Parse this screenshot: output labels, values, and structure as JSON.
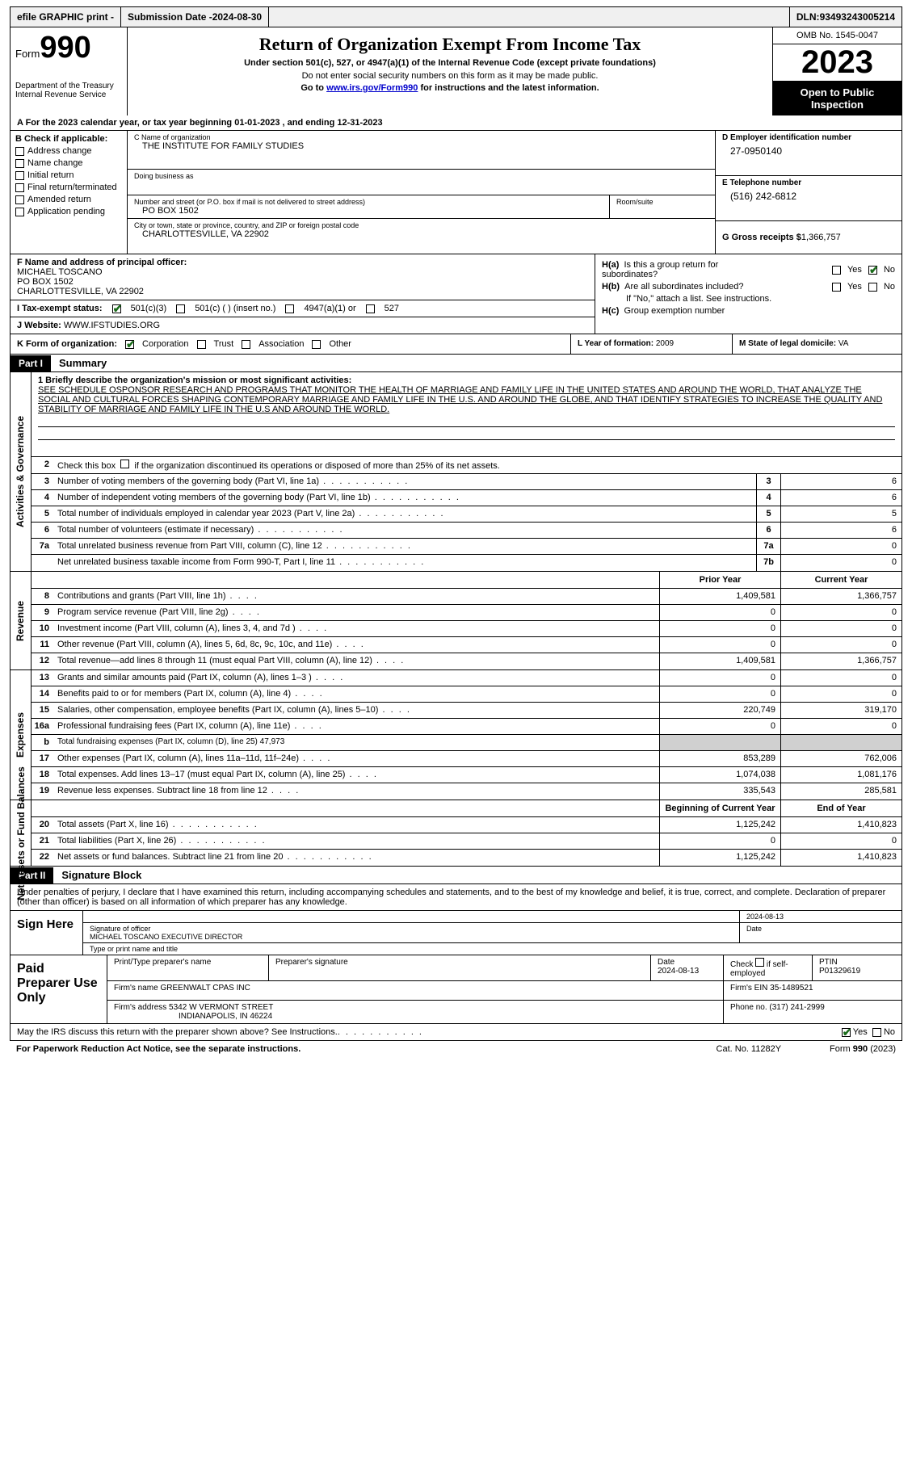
{
  "topbar": {
    "efile": "efile GRAPHIC print -",
    "submission_label": "Submission Date - ",
    "submission_date": "2024-08-30",
    "dln_label": "DLN: ",
    "dln": "93493243005214"
  },
  "header": {
    "form_label": "Form",
    "form_number": "990",
    "dept": "Department of the Treasury Internal Revenue Service",
    "title": "Return of Organization Exempt From Income Tax",
    "subtitle": "Under section 501(c), 527, or 4947(a)(1) of the Internal Revenue Code (except private foundations)",
    "note1": "Do not enter social security numbers on this form as it may be made public.",
    "note2_prefix": "Go to ",
    "note2_link": "www.irs.gov/Form990",
    "note2_suffix": " for instructions and the latest information.",
    "omb": "OMB No. 1545-0047",
    "year": "2023",
    "open_public": "Open to Public Inspection"
  },
  "row_a": {
    "prefix": "A For the 2023 calendar year, or tax year beginning ",
    "begin": "01-01-2023",
    "mid": "  , and ending ",
    "end": "12-31-2023"
  },
  "section_b": {
    "label": "B Check if applicable:",
    "items": [
      "Address change",
      "Name change",
      "Initial return",
      "Final return/terminated",
      "Amended return",
      "Application pending"
    ]
  },
  "section_c": {
    "name_label": "C Name of organization",
    "name": "THE INSTITUTE FOR FAMILY STUDIES",
    "dba_label": "Doing business as",
    "dba": "",
    "street_label": "Number and street (or P.O. box if mail is not delivered to street address)",
    "street": "PO BOX 1502",
    "room_label": "Room/suite",
    "room": "",
    "city_label": "City or town, state or province, country, and ZIP or foreign postal code",
    "city": "CHARLOTTESVILLE, VA  22902"
  },
  "section_d": {
    "ein_label": "D Employer identification number",
    "ein": "27-0950140",
    "phone_label": "E Telephone number",
    "phone": "(516) 242-6812",
    "gross_label": "G Gross receipts $ ",
    "gross": "1,366,757"
  },
  "section_f": {
    "label": "F Name and address of principal officer:",
    "name": "MICHAEL TOSCANO",
    "addr1": "PO BOX 1502",
    "addr2": "CHARLOTTESVILLE, VA  22902"
  },
  "section_h": {
    "ha_label": "H(a)  Is this a group return for subordinates?",
    "hb_label": "H(b)  Are all subordinates included?",
    "hb_note": "If \"No,\" attach a list. See instructions.",
    "hc_label": "H(c)  Group exemption number ",
    "yes": "Yes",
    "no": "No"
  },
  "row_i": {
    "label": "I   Tax-exempt status:",
    "opt1": "501(c)(3)",
    "opt2": "501(c) (   ) (insert no.)",
    "opt3": "4947(a)(1) or",
    "opt4": "527"
  },
  "row_j": {
    "label": "J   Website: ",
    "site": "WWW.IFSTUDIES.ORG"
  },
  "row_k": {
    "label": "K Form of organization:",
    "opts": [
      "Corporation",
      "Trust",
      "Association",
      "Other"
    ]
  },
  "row_l": {
    "label": "L Year of formation: ",
    "val": "2009"
  },
  "row_m": {
    "label": "M State of legal domicile: ",
    "val": "VA"
  },
  "part1": {
    "label": "Part I",
    "title": "Summary"
  },
  "mission": {
    "label": "1   Briefly describe the organization's mission or most significant activities:",
    "text": "SEE SCHEDULE OSPONSOR RESEARCH AND PROGRAMS THAT MONITOR THE HEALTH OF MARRIAGE AND FAMILY LIFE IN THE UNITED STATES AND AROUND THE WORLD, THAT ANALYZE THE SOCIAL AND CULTURAL FORCES SHAPING CONTEMPORARY MARRIAGE AND FAMILY LIFE IN THE U.S. AND AROUND THE GLOBE, AND THAT IDENTIFY STRATEGIES TO INCREASE THE QUALITY AND STABILITY OF MARRIAGE AND FAMILY LIFE IN THE U.S AND AROUND THE WORLD."
  },
  "governance": {
    "side": "Activities & Governance",
    "row2": "Check this box       if the organization discontinued its operations or disposed of more than 25% of its net assets.",
    "rows": [
      {
        "n": "3",
        "desc": "Number of voting members of the governing body (Part VI, line 1a)",
        "box": "3",
        "v": "6"
      },
      {
        "n": "4",
        "desc": "Number of independent voting members of the governing body (Part VI, line 1b)",
        "box": "4",
        "v": "6"
      },
      {
        "n": "5",
        "desc": "Total number of individuals employed in calendar year 2023 (Part V, line 2a)",
        "box": "5",
        "v": "5"
      },
      {
        "n": "6",
        "desc": "Total number of volunteers (estimate if necessary)",
        "box": "6",
        "v": "6"
      },
      {
        "n": "7a",
        "desc": "Total unrelated business revenue from Part VIII, column (C), line 12",
        "box": "7a",
        "v": "0"
      },
      {
        "n": "",
        "desc": "Net unrelated business taxable income from Form 990-T, Part I, line 11",
        "box": "7b",
        "v": "0"
      }
    ]
  },
  "revenue": {
    "side": "Revenue",
    "header": {
      "prior": "Prior Year",
      "current": "Current Year"
    },
    "rows": [
      {
        "n": "8",
        "desc": "Contributions and grants (Part VIII, line 1h)",
        "prior": "1,409,581",
        "cur": "1,366,757"
      },
      {
        "n": "9",
        "desc": "Program service revenue (Part VIII, line 2g)",
        "prior": "0",
        "cur": "0"
      },
      {
        "n": "10",
        "desc": "Investment income (Part VIII, column (A), lines 3, 4, and 7d )",
        "prior": "0",
        "cur": "0"
      },
      {
        "n": "11",
        "desc": "Other revenue (Part VIII, column (A), lines 5, 6d, 8c, 9c, 10c, and 11e)",
        "prior": "0",
        "cur": "0"
      },
      {
        "n": "12",
        "desc": "Total revenue—add lines 8 through 11 (must equal Part VIII, column (A), line 12)",
        "prior": "1,409,581",
        "cur": "1,366,757"
      }
    ]
  },
  "expenses": {
    "side": "Expenses",
    "rows": [
      {
        "n": "13",
        "desc": "Grants and similar amounts paid (Part IX, column (A), lines 1–3 )",
        "prior": "0",
        "cur": "0"
      },
      {
        "n": "14",
        "desc": "Benefits paid to or for members (Part IX, column (A), line 4)",
        "prior": "0",
        "cur": "0"
      },
      {
        "n": "15",
        "desc": "Salaries, other compensation, employee benefits (Part IX, column (A), lines 5–10)",
        "prior": "220,749",
        "cur": "319,170"
      },
      {
        "n": "16a",
        "desc": "Professional fundraising fees (Part IX, column (A), line 11e)",
        "prior": "0",
        "cur": "0"
      },
      {
        "n": "b",
        "desc": "Total fundraising expenses (Part IX, column (D), line 25) 47,973",
        "prior": "",
        "cur": "",
        "shade": true,
        "small": true
      },
      {
        "n": "17",
        "desc": "Other expenses (Part IX, column (A), lines 11a–11d, 11f–24e)",
        "prior": "853,289",
        "cur": "762,006"
      },
      {
        "n": "18",
        "desc": "Total expenses. Add lines 13–17 (must equal Part IX, column (A), line 25)",
        "prior": "1,074,038",
        "cur": "1,081,176"
      },
      {
        "n": "19",
        "desc": "Revenue less expenses. Subtract line 18 from line 12",
        "prior": "335,543",
        "cur": "285,581"
      }
    ]
  },
  "netassets": {
    "side": "Net Assets or Fund Balances",
    "header": {
      "prior": "Beginning of Current Year",
      "current": "End of Year"
    },
    "rows": [
      {
        "n": "20",
        "desc": "Total assets (Part X, line 16)",
        "prior": "1,125,242",
        "cur": "1,410,823"
      },
      {
        "n": "21",
        "desc": "Total liabilities (Part X, line 26)",
        "prior": "0",
        "cur": "0"
      },
      {
        "n": "22",
        "desc": "Net assets or fund balances. Subtract line 21 from line 20",
        "prior": "1,125,242",
        "cur": "1,410,823"
      }
    ]
  },
  "part2": {
    "label": "Part II",
    "title": "Signature Block"
  },
  "sig": {
    "decl": "Under penalties of perjury, I declare that I have examined this return, including accompanying schedules and statements, and to the best of my knowledge and belief, it is true, correct, and complete. Declaration of preparer (other than officer) is based on all information of which preparer has any knowledge.",
    "sign_here": "Sign Here",
    "sig_label": "Signature of officer",
    "officer": "MICHAEL TOSCANO  EXECUTIVE DIRECTOR",
    "type_label": "Type or print name and title",
    "date_label": "Date",
    "date": "2024-08-13"
  },
  "prep": {
    "label": "Paid Preparer Use Only",
    "h1": "Print/Type preparer's name",
    "h2": "Preparer's signature",
    "h3_label": "Date",
    "h3": "2024-08-13",
    "h4_label": "Check        if self-employed",
    "h5_label": "PTIN",
    "h5": "P01329619",
    "firm_name_label": "Firm's name     ",
    "firm_name": "GREENWALT CPAS INC",
    "firm_ein_label": "Firm's EIN  ",
    "firm_ein": "35-1489521",
    "firm_addr_label": "Firm's address ",
    "firm_addr1": "5342 W VERMONT STREET",
    "firm_addr2": "INDIANAPOLIS, IN  46224",
    "phone_label": "Phone no. ",
    "phone": "(317) 241-2999"
  },
  "footer": {
    "discuss": "May the IRS discuss this return with the preparer shown above? See Instructions.",
    "yes": "Yes",
    "no": "No",
    "paperwork": "For Paperwork Reduction Act Notice, see the separate instructions.",
    "cat": "Cat. No. 11282Y",
    "form": "Form 990 (2023)"
  },
  "colors": {
    "check_green": "#1a6b1a",
    "link_blue": "#0000cc"
  }
}
